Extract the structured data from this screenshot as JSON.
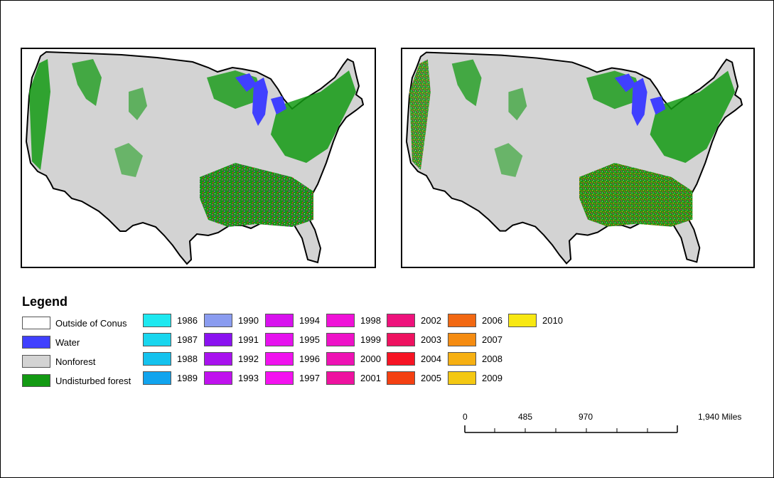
{
  "legend": {
    "title": "Legend",
    "base_classes": [
      {
        "label": "Outside of Conus",
        "color": "#ffffff"
      },
      {
        "label": "Water",
        "color": "#4040ff"
      },
      {
        "label": "Nonforest",
        "color": "#d3d3d3"
      },
      {
        "label": "Undisturbed forest",
        "color": "#139a13"
      }
    ],
    "years": [
      {
        "label": "1986",
        "color": "#1ee8f0"
      },
      {
        "label": "1987",
        "color": "#19d6ee"
      },
      {
        "label": "1988",
        "color": "#14c2ee"
      },
      {
        "label": "1989",
        "color": "#11a4ee"
      },
      {
        "label": "1990",
        "color": "#8a9cf0"
      },
      {
        "label": "1991",
        "color": "#8a12f0"
      },
      {
        "label": "1992",
        "color": "#a812ee"
      },
      {
        "label": "1993",
        "color": "#c012ee"
      },
      {
        "label": "1994",
        "color": "#d812ee"
      },
      {
        "label": "1995",
        "color": "#e612ee"
      },
      {
        "label": "1996",
        "color": "#f012ee"
      },
      {
        "label": "1997",
        "color": "#f412f0"
      },
      {
        "label": "1998",
        "color": "#f012d8"
      },
      {
        "label": "1999",
        "color": "#ee12c8"
      },
      {
        "label": "2000",
        "color": "#ee12b4"
      },
      {
        "label": "2001",
        "color": "#ee12a0"
      },
      {
        "label": "2002",
        "color": "#ee127c"
      },
      {
        "label": "2003",
        "color": "#ee1260"
      },
      {
        "label": "2004",
        "color": "#f61424"
      },
      {
        "label": "2005",
        "color": "#f44012"
      },
      {
        "label": "2006",
        "color": "#f26812"
      },
      {
        "label": "2007",
        "color": "#f58c12"
      },
      {
        "label": "2008",
        "color": "#f6b012"
      },
      {
        "label": "2009",
        "color": "#f4c812"
      },
      {
        "label": "2010",
        "color": "#f8e812"
      }
    ]
  },
  "scale": {
    "labels": [
      "0",
      "485",
      "970",
      "1,940 Miles"
    ]
  }
}
